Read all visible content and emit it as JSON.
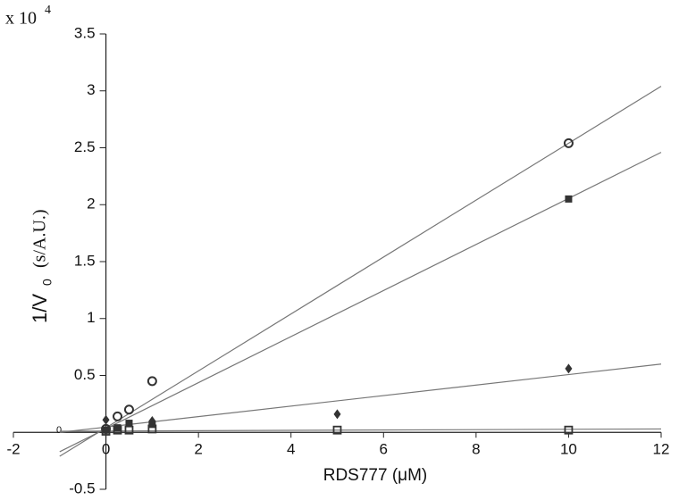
{
  "chart_data": {
    "type": "scatter",
    "y_multiplier": {
      "base": "x 10",
      "exponent": "4"
    },
    "y_label": {
      "main": "1/V",
      "sub": "0",
      "unit": "(s/A.U.)"
    },
    "x_label": "RDS777 (μM)",
    "xlim": [
      -2,
      12
    ],
    "xticks": [
      -2,
      0,
      2,
      4,
      6,
      8,
      10,
      12
    ],
    "ylim": [
      -0.5,
      3.5
    ],
    "yticks": [
      -0.5,
      0,
      0.5,
      1,
      1.5,
      2,
      2.5,
      3,
      3.5
    ],
    "series": [
      {
        "marker": "circle-open",
        "color": "#333333",
        "x": [
          0,
          0.25,
          0.5,
          1,
          10
        ],
        "values": [
          0.03,
          0.14,
          0.2,
          0.45,
          2.54
        ]
      },
      {
        "marker": "square-filled",
        "color": "#333333",
        "x": [
          0,
          0.25,
          0.5,
          1,
          10
        ],
        "values": [
          0.02,
          0.04,
          0.08,
          0.07,
          2.05
        ]
      },
      {
        "marker": "diamond-filled",
        "color": "#333333",
        "x": [
          0,
          1,
          5,
          10
        ],
        "values": [
          0.11,
          0.1,
          0.16,
          0.56
        ]
      },
      {
        "marker": "square-open",
        "color": "#333333",
        "x": [
          0,
          0.25,
          0.5,
          1,
          5,
          10
        ],
        "values": [
          0.01,
          0.02,
          0.02,
          0.03,
          0.02,
          0.02
        ]
      }
    ],
    "fit_lines": [
      {
        "color": "#777777",
        "x": [
          -1,
          12
        ],
        "values": [
          -0.21,
          3.04
        ]
      },
      {
        "color": "#777777",
        "x": [
          -1,
          12
        ],
        "values": [
          -0.17,
          2.46
        ]
      },
      {
        "color": "#777777",
        "x": [
          -1,
          12
        ],
        "values": [
          0.0,
          0.6
        ]
      },
      {
        "color": "#777777",
        "x": [
          -1,
          12
        ],
        "values": [
          0.01,
          0.03
        ]
      }
    ]
  }
}
